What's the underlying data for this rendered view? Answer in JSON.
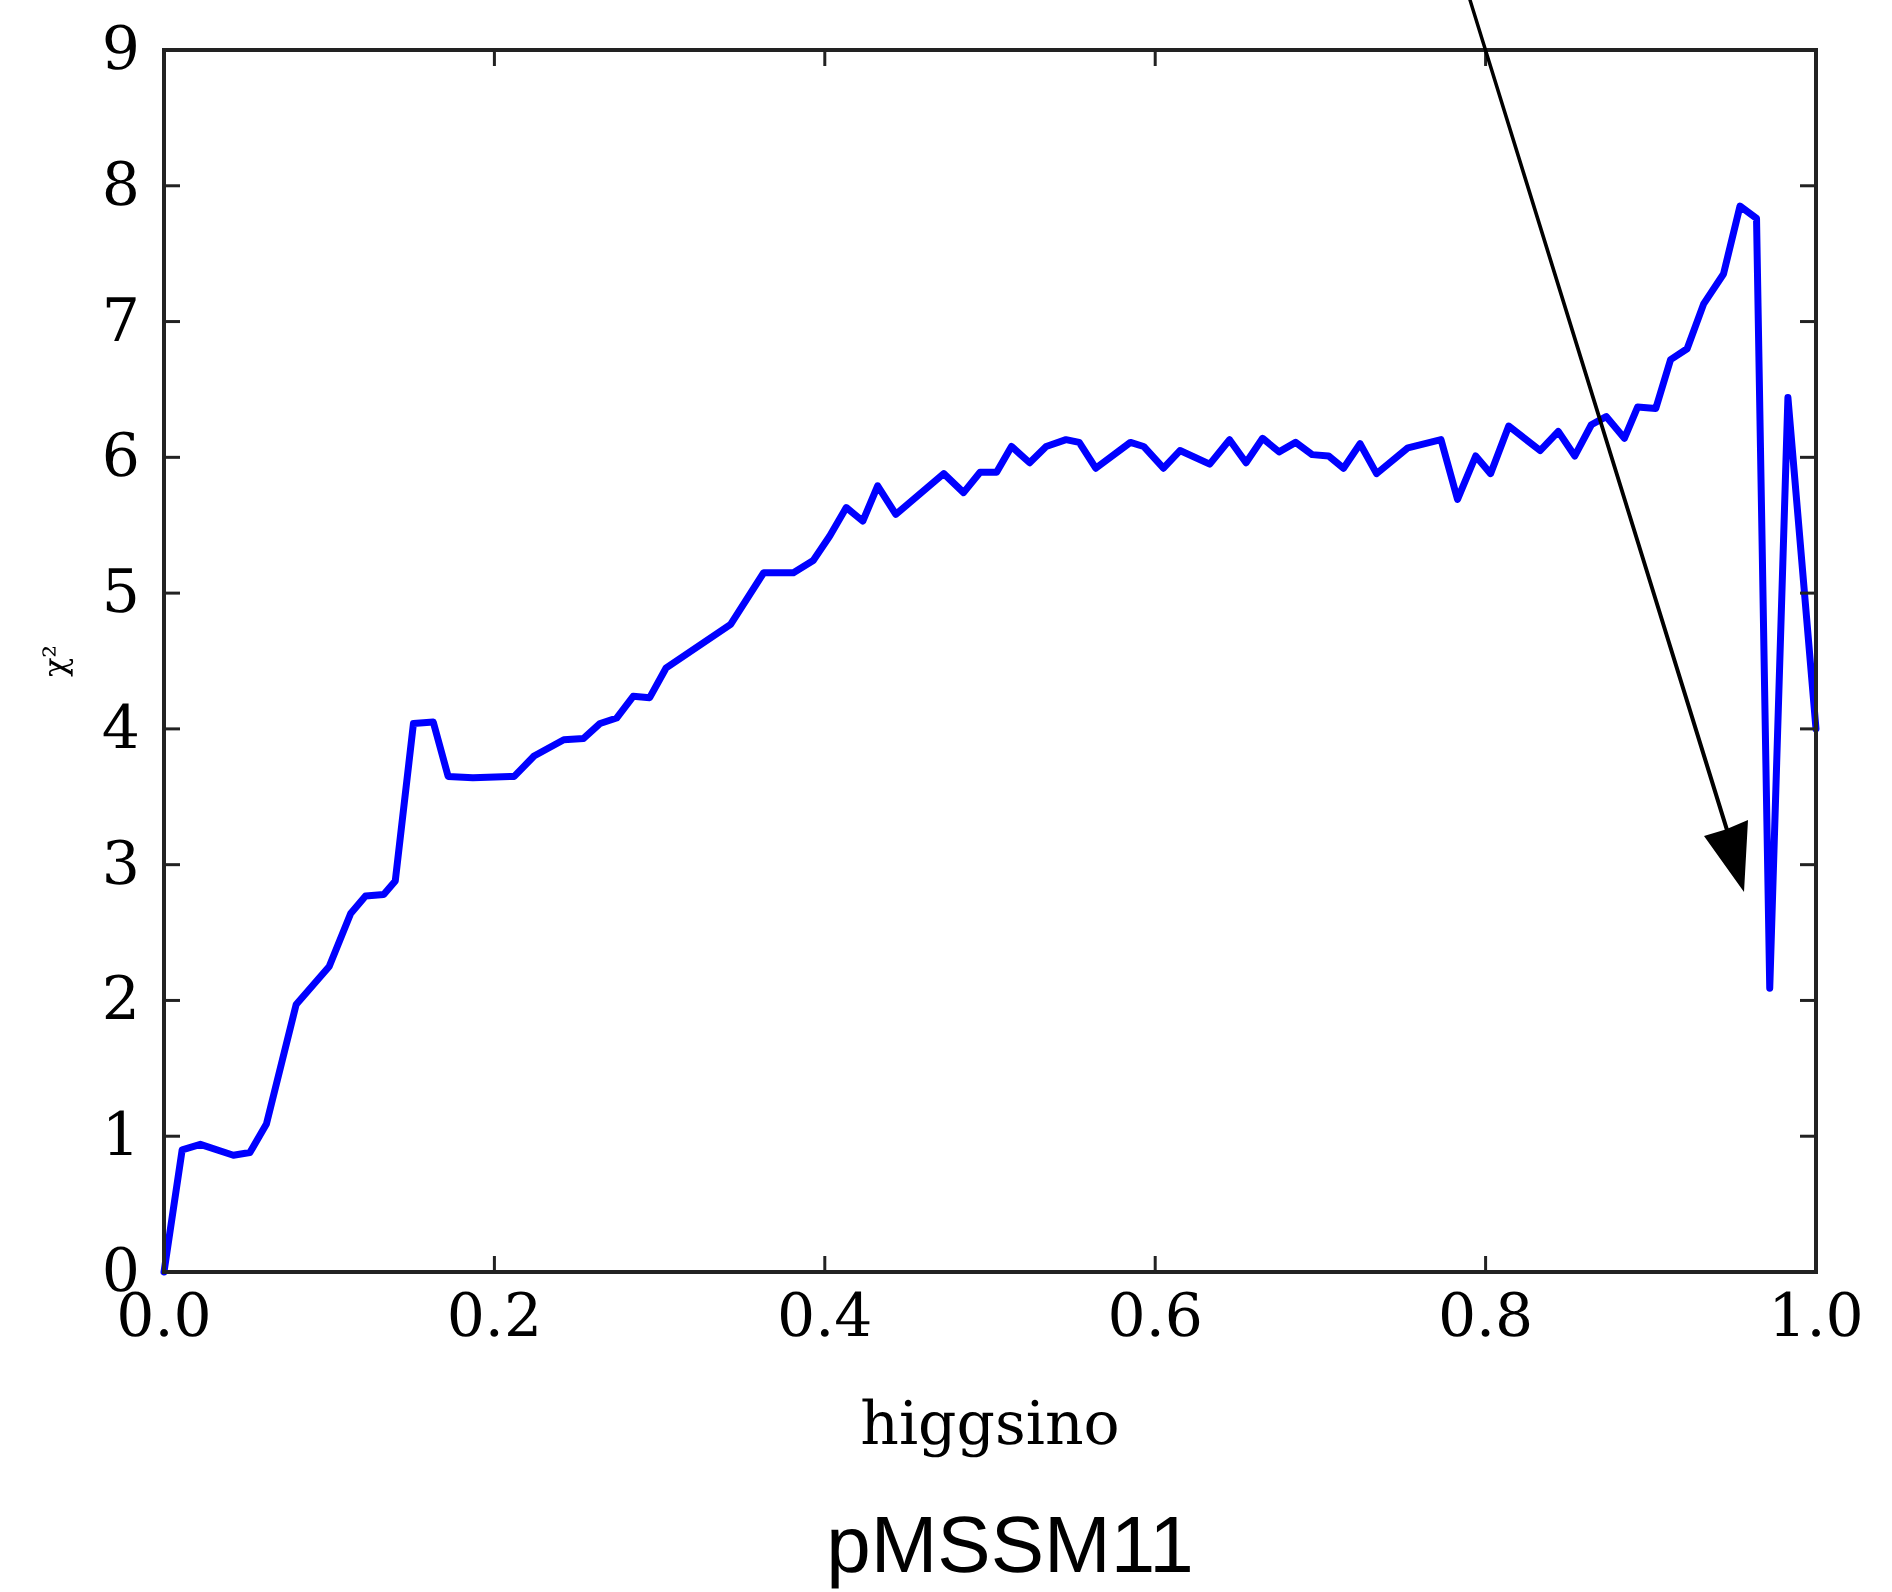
{
  "chart_data": {
    "type": "line",
    "title": "pMSSM11",
    "xlabel": "higgsino",
    "ylabel": "χ²",
    "xlim": [
      0,
      1
    ],
    "ylim": [
      0,
      9
    ],
    "xticks": [
      {
        "value": 0,
        "label": "0.0"
      },
      0.2,
      0.4,
      0.6,
      0.8,
      {
        "value": 1,
        "label": "1.0"
      }
    ],
    "yticks": [
      0,
      1,
      2,
      3,
      4,
      5,
      6,
      7,
      8,
      9
    ],
    "grid": false,
    "marker": "none",
    "line_style": "solid",
    "series": [
      {
        "color": "#0000ff",
        "x": [
          0,
          0.011,
          0.022,
          0.042,
          0.052,
          0.062,
          0.08,
          0.1,
          0.113,
          0.122,
          0.133,
          0.14,
          0.151,
          0.163,
          0.172,
          0.187,
          0.212,
          0.224,
          0.242,
          0.254,
          0.264,
          0.274,
          0.284,
          0.294,
          0.304,
          0.343,
          0.363,
          0.381,
          0.393,
          0.403,
          0.413,
          0.423,
          0.432,
          0.443,
          0.472,
          0.484,
          0.494,
          0.504,
          0.513,
          0.524,
          0.534,
          0.546,
          0.554,
          0.564,
          0.585,
          0.593,
          0.605,
          0.615,
          0.633,
          0.645,
          0.655,
          0.665,
          0.675,
          0.685,
          0.695,
          0.705,
          0.714,
          0.724,
          0.734,
          0.753,
          0.773,
          0.783,
          0.794,
          0.803,
          0.814,
          0.833,
          0.844,
          0.854,
          0.864,
          0.873,
          0.884,
          0.892,
          0.903,
          0.912,
          0.922,
          0.932,
          0.944,
          0.954,
          0.964,
          0.972,
          0.983,
          1.0
        ],
        "values": [
          0,
          0.9,
          0.94,
          0.86,
          0.88,
          1.09,
          1.97,
          2.25,
          2.64,
          2.77,
          2.78,
          2.88,
          4.04,
          4.05,
          3.65,
          3.64,
          3.65,
          3.8,
          3.92,
          3.93,
          4.04,
          4.08,
          4.24,
          4.23,
          4.45,
          4.77,
          5.15,
          5.15,
          5.24,
          5.42,
          5.63,
          5.53,
          5.79,
          5.58,
          5.88,
          5.74,
          5.89,
          5.89,
          6.08,
          5.96,
          6.08,
          6.13,
          6.11,
          5.92,
          6.11,
          6.08,
          5.92,
          6.05,
          5.95,
          6.13,
          5.96,
          6.14,
          6.04,
          6.11,
          6.02,
          6.01,
          5.92,
          6.1,
          5.88,
          6.07,
          6.13,
          5.69,
          6.01,
          5.88,
          6.23,
          6.05,
          6.19,
          6.01,
          6.24,
          6.3,
          6.14,
          6.37,
          6.36,
          6.72,
          6.8,
          7.13,
          7.35,
          7.85,
          7.76,
          2.09,
          6.44,
          4.0
        ]
      }
    ]
  }
}
